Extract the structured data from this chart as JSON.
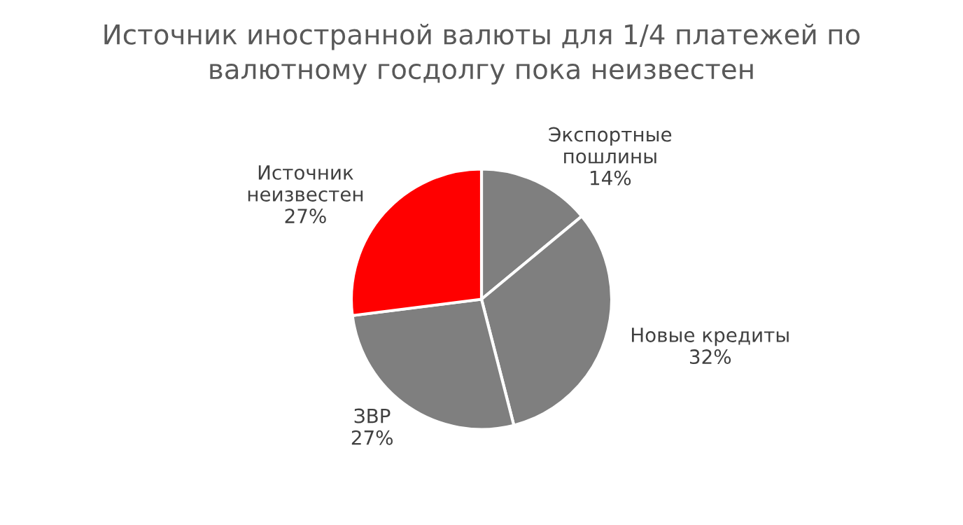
{
  "chart_data": {
    "type": "pie",
    "title": "Источник иностранной валюты для 1/4 платежей по\nвалютному госдолгу пока неизвестен",
    "categories": [
      "Экспортные\nпошлины",
      "Новые кредиты",
      "ЗВР",
      "Источник\nнеизвестен"
    ],
    "values": [
      14,
      32,
      27,
      27
    ],
    "value_labels": [
      "14%",
      "32%",
      "27%",
      "27%"
    ],
    "colors": [
      "#7f7f7f",
      "#7f7f7f",
      "#7f7f7f",
      "#ff0000"
    ],
    "legend": false
  }
}
